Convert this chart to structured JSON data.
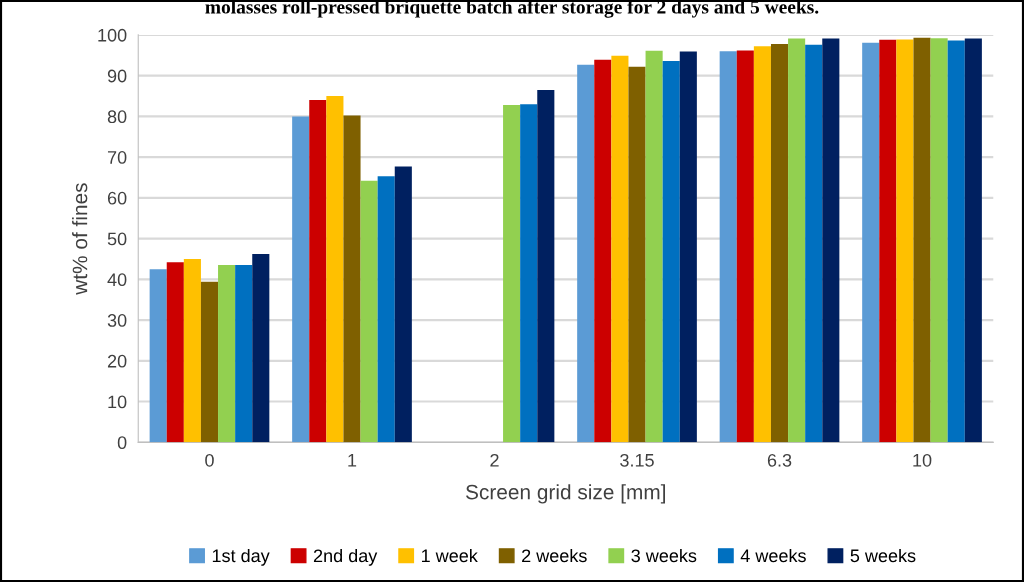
{
  "chart_data": {
    "type": "bar",
    "title": "molasses roll-pressed briquette batch after storage for 2 days and 5 weeks.",
    "xlabel": "Screen grid size [mm]",
    "ylabel": "wt% of fines",
    "categories": [
      "0",
      "1",
      "2",
      "3.15",
      "6.3",
      "10"
    ],
    "series": [
      {
        "name": "1st day",
        "color": "#5b9bd5",
        "values": [
          42.5,
          80,
          null,
          92.7,
          96,
          98.1
        ]
      },
      {
        "name": "2nd day",
        "color": "#cc0000",
        "values": [
          44.2,
          84,
          null,
          93.9,
          96.2,
          98.8
        ]
      },
      {
        "name": "1 week",
        "color": "#ffc000",
        "values": [
          45,
          85,
          null,
          94.9,
          97.2,
          98.9
        ]
      },
      {
        "name": "2 weeks",
        "color": "#7f6000",
        "values": [
          39.4,
          80.2,
          null,
          92.2,
          97.8,
          99.3
        ]
      },
      {
        "name": "3 weeks",
        "color": "#92d050",
        "values": [
          43.5,
          64.2,
          82.8,
          96.1,
          99.1,
          99.2
        ]
      },
      {
        "name": "4 weeks",
        "color": "#0070c0",
        "values": [
          43.5,
          65.3,
          83,
          93.6,
          97.6,
          98.6
        ]
      },
      {
        "name": "5 weeks",
        "color": "#002060",
        "values": [
          46.2,
          67.7,
          86.5,
          95.9,
          99.1,
          99.1
        ]
      }
    ],
    "ylim": [
      0,
      100
    ],
    "yticks": [
      0,
      10,
      20,
      30,
      40,
      50,
      60,
      70,
      80,
      90,
      100
    ],
    "grid": "y",
    "legend": "bottom"
  }
}
